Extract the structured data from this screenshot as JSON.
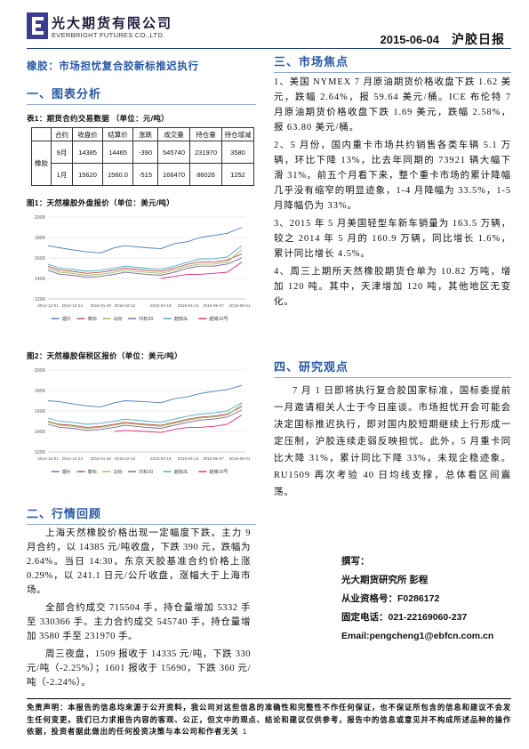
{
  "header": {
    "company_cn": "光大期货有限公司",
    "company_en": "EVERBRIGHT FUTURES CO.,LTD.",
    "date": "2015-06-04",
    "report_title": "沪胶日报",
    "logo_icon": "everbright-e-logo"
  },
  "left": {
    "headline": "橡胶：市场担忧复合胶新标推迟执行",
    "section1_title": "一、图表分析",
    "table_caption": "表1：期货合约交易数据 （单位：元/吨）",
    "table": {
      "headers": [
        "合约",
        "收盘价",
        "结算价",
        "涨跌",
        "成交量",
        "持仓量",
        "持仓增减"
      ],
      "group_label": "橡胶",
      "rows": [
        [
          "9月",
          "14385",
          "14465",
          "-390",
          "545740",
          "231970",
          "3580"
        ],
        [
          "1月",
          "15620",
          "1560.0",
          "-515",
          "166470",
          "86026",
          "1252"
        ]
      ]
    },
    "section2_title": "二、行情回顾",
    "review_paragraphs": [
      "上海天然橡胶价格出现一定幅度下跌。主力 9 月合约，以 14385 元/吨收盘，下跌 390 元，跌幅为 2.64%。当日 14:30，东京天胶基准合约价格上涨 0.29%，以 241.1 日元/公斤收盘，涨幅大于上海市场。",
      "全部合约成交 715504 手，持仓量增加 5332 手至 330366 手。主力合约成交 545740 手，持仓量增加 3580 手至 231970 手。",
      "周三夜盘，1509 报收于 14335 元/吨，下跌 330 元/吨（-2.25%）；1601 报收于 15690，下跌 360 元/吨（-2.24%）。"
    ]
  },
  "right": {
    "section3_title": "三、市场焦点",
    "focus_items": [
      "1、美国 NYMEX 7 月原油期货价格收盘下跌 1.62 美元，跌幅 2.64%，报 59.64 美元/桶。ICE 布伦特 7 月原油期货价格收盘下跌 1.69 美元，跌幅 2.58%，报 63.80 美元/桶。",
      "2、5 月份，国内重卡市场共约销售各类车辆 5.1 万辆，环比下降 13%，比去年同期的 73921 辆大幅下滑 31%。前五个月看下来，整个重卡市场的累计降幅几乎没有缩窄的明显迹象，1-4 月降幅为 33.5%，1-5 月降幅仍为 33%。",
      "3、2015 年 5 月美国轻型车新车销量为 163.5 万辆，较之 2014 年 5 月的 160.9 万辆，同比增长 1.6%，累计同比增长 4.5%。",
      "4、周三上期所天然橡胶期货仓单为 10.82 万吨，增加 120 吨。其中，天津增加 120 吨，其他地区无变化。"
    ],
    "section4_title": "四、研究观点",
    "research_paragraph": "7 月 1 日即将执行复合胶国家标准，国标委提前一月邀请相关人士于今日座谈。市场担忧开会可能会决定国标推迟执行，即对国内胶短期继续上行形成一定压制，沪胶连续走弱反映担忧。此外，5 月重卡同比大降 31%，累计同比下降 33%，未现企稳迹象。RU1509 再次考验 40 日均线支撑，总体看区间震荡。",
    "author": {
      "label": "撰写：",
      "org_name": "光大期货研究所  彭程",
      "license": "从业资格号：F0286172",
      "phone": "固定电话：021-22169060-237",
      "email": "Email:pengcheng1@ebfcn.com.cn"
    }
  },
  "disclaimer": "免责声明：本报告的信息均来源于公开资料，我公司对这些信息的准确性和完整性不作任何保证，也不保证所包含的信息和建议不会发生任何变更。我们已力求报告内容的客观、公正，但文中的观点、结论和建议仅供参考，报告中的信息或意见并不构成所述品种的操作依据，投资者据此做出的任何投资决策与本公司和作者无关",
  "page_number": "1",
  "chart_data": [
    {
      "type": "line",
      "title": "图1：天然橡胶外盘报价（单位：美元/吨）",
      "xlim": [
        "2014-12-01",
        "2015-06-03"
      ],
      "ylim": [
        1200,
        2000
      ],
      "yticks": [
        1200,
        1400,
        1600,
        1800,
        2000
      ],
      "xticks": [
        "2014-12-01",
        "2014-12-24",
        "2015-01-20",
        "2015-02-12",
        "2015-03-18",
        "2015-04-13",
        "2015-05-07",
        "2015-06-01"
      ],
      "grid": true,
      "legend": "bottom",
      "x": [
        "2014-12-01",
        "2014-12-12",
        "2014-12-24",
        "2015-01-07",
        "2015-01-20",
        "2015-02-02",
        "2015-02-12",
        "2015-03-04",
        "2015-03-18",
        "2015-03-31",
        "2015-04-13",
        "2015-04-24",
        "2015-05-07",
        "2015-05-20",
        "2015-06-03"
      ],
      "series": [
        {
          "name": "烟片",
          "color": "#4a7ebb",
          "values": [
            1720,
            1700,
            1680,
            1660,
            1650,
            1700,
            1720,
            1700,
            1690,
            1740,
            1760,
            1800,
            1820,
            1840,
            1900
          ]
        },
        {
          "name": "泰标",
          "color": "#be4b48",
          "values": [
            1520,
            1480,
            1470,
            1450,
            1460,
            1480,
            1500,
            1480,
            1470,
            1500,
            1540,
            1560,
            1560,
            1580,
            1640
          ]
        },
        {
          "name": "马标",
          "color": "#98b954",
          "values": [
            1500,
            1460,
            1450,
            1430,
            1440,
            1460,
            1480,
            1460,
            1450,
            1480,
            1520,
            1540,
            1540,
            1560,
            1680
          ]
        },
        {
          "name": "印标20",
          "color": "#7d60a0",
          "values": [
            1480,
            1440,
            1430,
            1410,
            1420,
            1440,
            1460,
            1440,
            1430,
            1460,
            1500,
            1520,
            1520,
            1540,
            1600
          ]
        },
        {
          "name": "越南3L",
          "color": "#46aac5",
          "values": [
            1540,
            1500,
            1490,
            1470,
            1480,
            1500,
            1520,
            1500,
            1490,
            1520,
            1560,
            1590,
            1590,
            1610,
            1720
          ]
        },
        {
          "name": "越南10号",
          "color": "#e0287e",
          "values": [
            null,
            null,
            null,
            null,
            null,
            null,
            null,
            null,
            1400,
            1420,
            1440,
            1440,
            1450,
            1460,
            1560
          ]
        }
      ]
    },
    {
      "type": "line",
      "title": "图2：天然橡胶保税区报价（单位：美元/吨）",
      "xlim": [
        "2014-12-01",
        "2015-06-03"
      ],
      "ylim": [
        1200,
        2000
      ],
      "yticks": [
        1200,
        1400,
        1600,
        1800,
        2000
      ],
      "xticks": [
        "2014-12-01",
        "2014-12-24",
        "2015-01-20",
        "2015-02-12",
        "2015-03-18",
        "2015-04-13",
        "2015-05-07",
        "2015-06-01"
      ],
      "grid": true,
      "legend": "bottom",
      "x": [
        "2014-12-01",
        "2014-12-12",
        "2014-12-24",
        "2015-01-07",
        "2015-01-20",
        "2015-02-02",
        "2015-02-12",
        "2015-03-04",
        "2015-03-18",
        "2015-03-31",
        "2015-04-13",
        "2015-04-24",
        "2015-05-07",
        "2015-05-20",
        "2015-06-03"
      ],
      "series": [
        {
          "name": "烟片",
          "color": "#4a7ebb",
          "values": [
            1700,
            1690,
            1670,
            1650,
            1640,
            1680,
            1700,
            1690,
            1680,
            1720,
            1740,
            1770,
            1790,
            1810,
            1850
          ]
        },
        {
          "name": "泰标",
          "color": "#be4b48",
          "values": [
            1500,
            1470,
            1460,
            1440,
            1450,
            1470,
            1490,
            1470,
            1460,
            1490,
            1520,
            1540,
            1550,
            1570,
            1640
          ]
        },
        {
          "name": "马标",
          "color": "#98b954",
          "values": [
            1490,
            1460,
            1450,
            1430,
            1440,
            1460,
            1480,
            1460,
            1450,
            1480,
            1510,
            1530,
            1540,
            1560,
            1660
          ]
        },
        {
          "name": "印标20",
          "color": "#7d60a0",
          "values": [
            1470,
            1440,
            1430,
            1410,
            1420,
            1440,
            1460,
            1440,
            1430,
            1460,
            1490,
            1510,
            1520,
            1540,
            1610
          ]
        },
        {
          "name": "越南3L",
          "color": "#46aac5",
          "values": [
            1530,
            1500,
            1490,
            1470,
            1480,
            1500,
            1520,
            1500,
            1490,
            1520,
            1550,
            1570,
            1580,
            1600,
            1680
          ]
        },
        {
          "name": "越南10号",
          "color": "#e0287e",
          "values": [
            null,
            null,
            null,
            null,
            null,
            1400,
            1410,
            1400,
            1390,
            1420,
            1440,
            1440,
            1450,
            1470,
            1560
          ]
        }
      ]
    }
  ]
}
